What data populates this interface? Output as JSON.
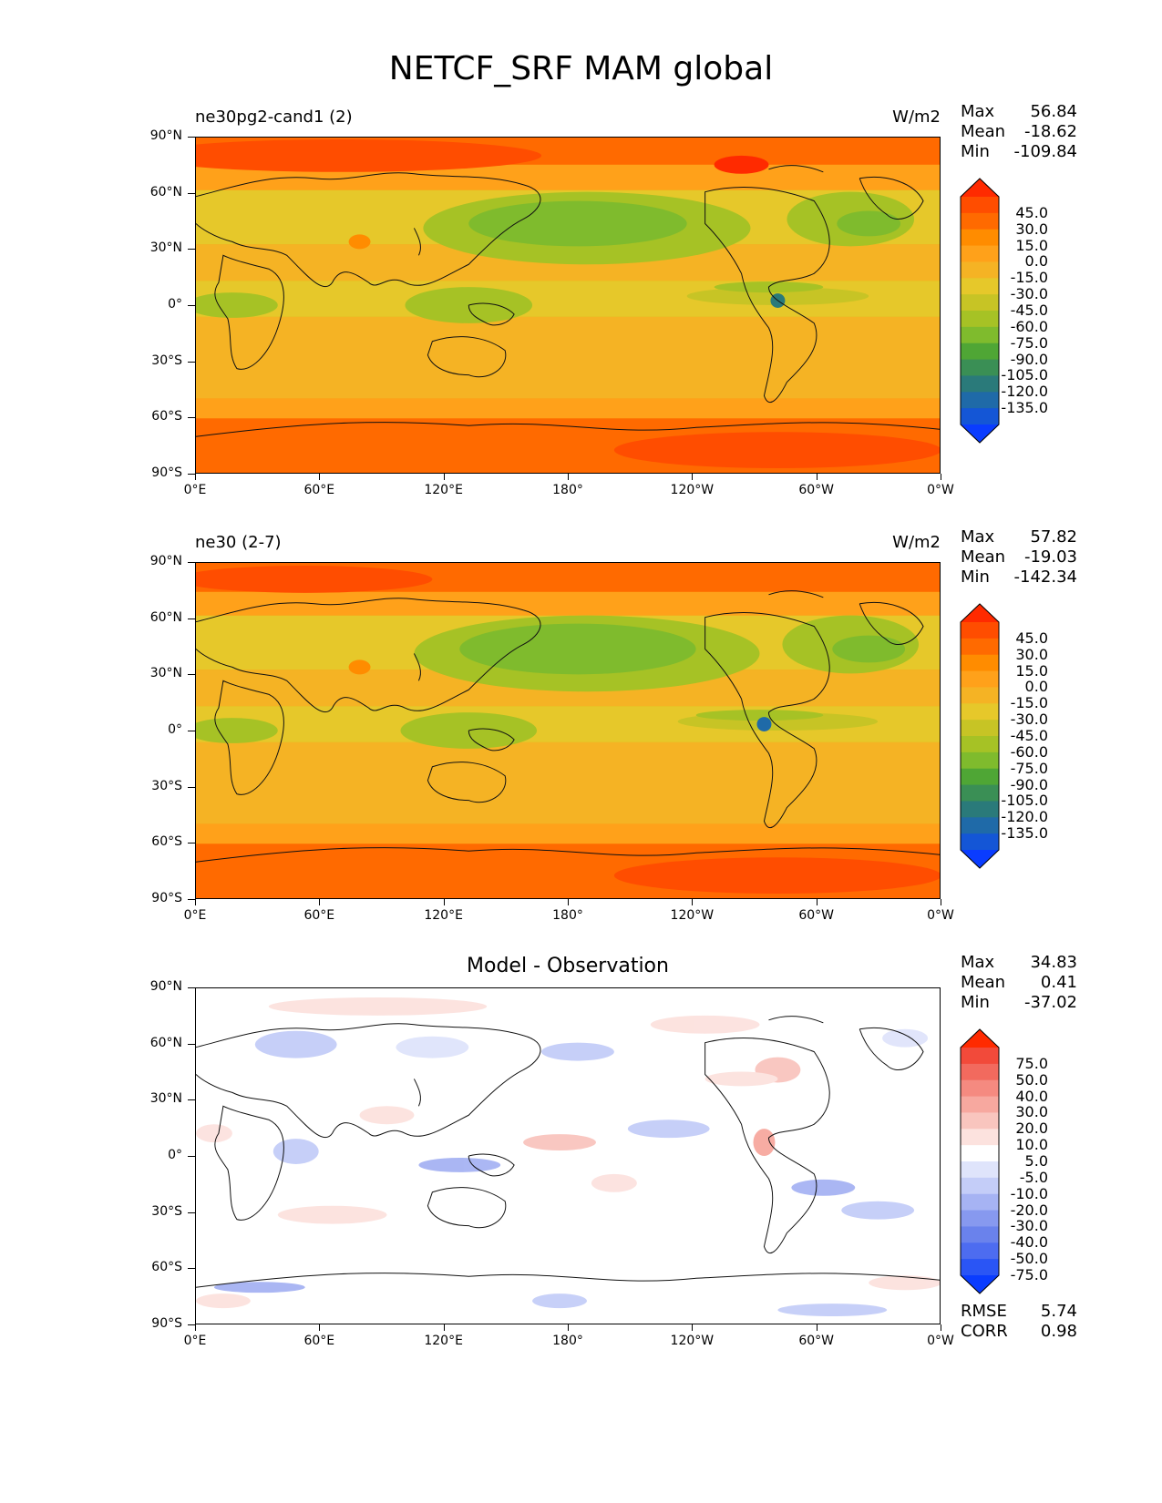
{
  "figure_title": "NETCF_SRF MAM global",
  "axes": {
    "lat_ticks": [
      "90°N",
      "60°N",
      "30°N",
      "0°",
      "30°S",
      "60°S",
      "90°S"
    ],
    "lon_ticks": [
      "0°E",
      "60°E",
      "120°E",
      "180°",
      "120°W",
      "60°W",
      "0°W"
    ]
  },
  "panels": [
    {
      "title_left": "ne30pg2-cand1 (2)",
      "title_right": "W/m2",
      "title_center": "",
      "stats": [
        {
          "label": "Max",
          "value": "56.84"
        },
        {
          "label": "Mean",
          "value": "-18.62"
        },
        {
          "label": "Min",
          "value": "-109.84"
        }
      ],
      "colorbar_labels": [
        "45.0",
        "30.0",
        "15.0",
        "0.0",
        "-15.0",
        "-30.0",
        "-45.0",
        "-60.0",
        "-75.0",
        "-90.0",
        "-105.0",
        "-120.0",
        "-135.0"
      ],
      "colorbar_colors": [
        "#ff2a00",
        "#ff4d00",
        "#ff6a00",
        "#ff8c00",
        "#ffa11a",
        "#f5b324",
        "#e6c82a",
        "#c7c425",
        "#a6c225",
        "#7fbb2d",
        "#4fa635",
        "#3a8f55",
        "#2a7a7a",
        "#1f6aa8",
        "#1456d6",
        "#0a3cff"
      ]
    },
    {
      "title_left": "ne30 (2-7)",
      "title_right": "W/m2",
      "title_center": "",
      "stats": [
        {
          "label": "Max",
          "value": "57.82"
        },
        {
          "label": "Mean",
          "value": "-19.03"
        },
        {
          "label": "Min",
          "value": "-142.34"
        }
      ],
      "colorbar_labels": [
        "45.0",
        "30.0",
        "15.0",
        "0.0",
        "-15.0",
        "-30.0",
        "-45.0",
        "-60.0",
        "-75.0",
        "-90.0",
        "-105.0",
        "-120.0",
        "-135.0"
      ],
      "colorbar_colors": [
        "#ff2a00",
        "#ff4d00",
        "#ff6a00",
        "#ff8c00",
        "#ffa11a",
        "#f5b324",
        "#e6c82a",
        "#c7c425",
        "#a6c225",
        "#7fbb2d",
        "#4fa635",
        "#3a8f55",
        "#2a7a7a",
        "#1f6aa8",
        "#1456d6",
        "#0a3cff"
      ]
    },
    {
      "title_left": "",
      "title_right": "",
      "title_center": "Model - Observation",
      "stats": [
        {
          "label": "Max",
          "value": "34.83"
        },
        {
          "label": "Mean",
          "value": "0.41"
        },
        {
          "label": "Min",
          "value": "-37.02"
        }
      ],
      "bottom_stats": [
        {
          "label": "RMSE",
          "value": "5.74"
        },
        {
          "label": "CORR",
          "value": "0.98"
        }
      ],
      "colorbar_labels": [
        "75.0",
        "50.0",
        "40.0",
        "30.0",
        "20.0",
        "10.0",
        "5.0",
        "-5.0",
        "-10.0",
        "-20.0",
        "-30.0",
        "-40.0",
        "-50.0",
        "-75.0"
      ],
      "colorbar_colors": [
        "#ff2a00",
        "#f24a3a",
        "#f26a5e",
        "#f58a80",
        "#f7a89f",
        "#f9c5be",
        "#fce2de",
        "#ffffff",
        "#dfe4fb",
        "#c4cdf8",
        "#a6b3f3",
        "#8799ef",
        "#6a82ec",
        "#4d6cf0",
        "#2a55f5",
        "#0a3cff"
      ]
    }
  ],
  "chart_data": [
    {
      "type": "heatmap",
      "title": "ne30pg2-cand1 (2)",
      "units": "W/m2",
      "variable": "NETCF_SRF",
      "season": "MAM",
      "region": "global",
      "stats": {
        "max": 56.84,
        "mean": -18.62,
        "min": -109.84
      },
      "xlim": [
        0,
        360
      ],
      "ylim": [
        -90,
        90
      ],
      "levels": [
        -135,
        -120,
        -105,
        -90,
        -75,
        -60,
        -45,
        -30,
        -15,
        0,
        15,
        30,
        45
      ],
      "zonal_pattern": [
        {
          "lat": 80,
          "value": 30
        },
        {
          "lat": 70,
          "value": 20
        },
        {
          "lat": 50,
          "value": -45
        },
        {
          "lat": 35,
          "value": -40
        },
        {
          "lat": 20,
          "value": -15
        },
        {
          "lat": 5,
          "value": -50
        },
        {
          "lat": -10,
          "value": -30
        },
        {
          "lat": -30,
          "value": -20
        },
        {
          "lat": -50,
          "value": -10
        },
        {
          "lat": -60,
          "value": 10
        },
        {
          "lat": -70,
          "value": 30
        },
        {
          "lat": -85,
          "value": 20
        }
      ]
    },
    {
      "type": "heatmap",
      "title": "ne30 (2-7)",
      "units": "W/m2",
      "stats": {
        "max": 57.82,
        "mean": -19.03,
        "min": -142.34
      },
      "xlim": [
        0,
        360
      ],
      "ylim": [
        -90,
        90
      ],
      "levels": [
        -135,
        -120,
        -105,
        -90,
        -75,
        -60,
        -45,
        -30,
        -15,
        0,
        15,
        30,
        45
      ],
      "zonal_pattern": [
        {
          "lat": 80,
          "value": 30
        },
        {
          "lat": 70,
          "value": 20
        },
        {
          "lat": 50,
          "value": -50
        },
        {
          "lat": 35,
          "value": -45
        },
        {
          "lat": 20,
          "value": -15
        },
        {
          "lat": 5,
          "value": -55
        },
        {
          "lat": -10,
          "value": -30
        },
        {
          "lat": -30,
          "value": -20
        },
        {
          "lat": -50,
          "value": -10
        },
        {
          "lat": -60,
          "value": 10
        },
        {
          "lat": -70,
          "value": 30
        },
        {
          "lat": -85,
          "value": 20
        }
      ]
    },
    {
      "type": "heatmap",
      "title": "Model - Observation",
      "stats": {
        "max": 34.83,
        "mean": 0.41,
        "min": -37.02,
        "rmse": 5.74,
        "corr": 0.98
      },
      "xlim": [
        0,
        360
      ],
      "ylim": [
        -90,
        90
      ],
      "levels": [
        -75,
        -50,
        -40,
        -30,
        -20,
        -10,
        -5,
        5,
        10,
        20,
        30,
        40,
        50,
        75
      ]
    }
  ]
}
